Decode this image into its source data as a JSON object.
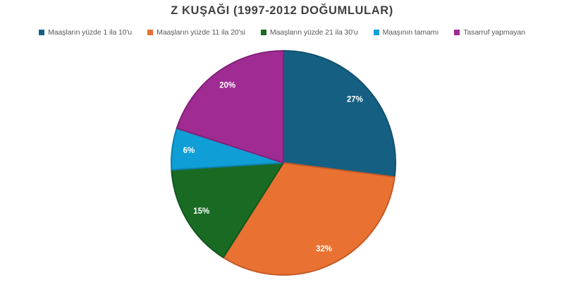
{
  "title": "Z KUŞAĞI (1997-2012 DOĞUMLULAR)",
  "chart_data": {
    "type": "pie",
    "title": "Z KUŞAĞI (1997-2012 DOĞUMLULAR)",
    "direction": "clockwise",
    "start_angle_deg": 0,
    "legend_position": "top",
    "label_style": "inside-percent",
    "label_radius_fraction": 0.85,
    "slices": [
      {
        "label": "Maaşların yüzde 1 ila 10'u",
        "value": 27,
        "display": "27%",
        "color": "#156082",
        "border": "#10506C"
      },
      {
        "label": "Maaşların yüzde 11 ila 20'si",
        "value": 32,
        "display": "32%",
        "color": "#E97132",
        "border": "#C55A26"
      },
      {
        "label": "Maaşların yüzde 21 ila 30'u",
        "value": 15,
        "display": "15%",
        "color": "#196B24",
        "border": "#14551C"
      },
      {
        "label": "Maaşının tamamı",
        "value": 6,
        "display": "6%",
        "color": "#0F9ED5",
        "border": "#0C81AE"
      },
      {
        "label": "Tasarruf yapmayan",
        "value": 20,
        "display": "20%",
        "color": "#A02B93",
        "border": "#832278"
      }
    ]
  },
  "styles": {
    "background": "#FFFFFF",
    "title_color": "#404040",
    "legend_text_color": "#595959",
    "slice_label_color": "#FFFFFF"
  }
}
